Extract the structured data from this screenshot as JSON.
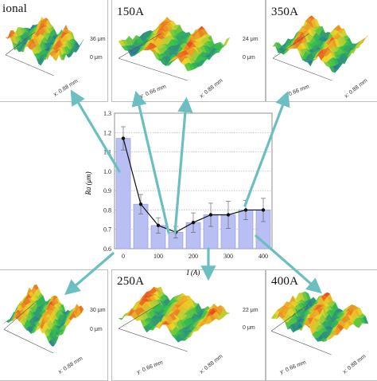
{
  "panels": [
    {
      "id": "p0",
      "label": "ional",
      "z_top": "36 μm",
      "z_zero": "0 μm",
      "x_axis": "x: 0.88 mm",
      "y_axis": ""
    },
    {
      "id": "p150",
      "label": "150A",
      "z_top": "24 μm",
      "z_zero": "0 μm",
      "x_axis": "x: 0.88 mm",
      "y_axis": "y: 0.66 mm"
    },
    {
      "id": "p350",
      "label": "350A",
      "z_top": "",
      "z_zero": "",
      "x_axis": "x: 0.88 mm",
      "y_axis": "y: 0.66 mm"
    },
    {
      "id": "p50",
      "label": "",
      "z_top": "30 μm",
      "z_zero": "0 μm",
      "x_axis": "x: 0.88 mm",
      "y_axis": ""
    },
    {
      "id": "p250",
      "label": "250A",
      "z_top": "22 μm",
      "z_zero": "0 μm",
      "x_axis": "x: 0.88 mm",
      "y_axis": "y: 0.66 mm"
    },
    {
      "id": "p400",
      "label": "400A",
      "z_top": "",
      "z_zero": "",
      "x_axis": "x: 0.88 mm",
      "y_axis": "y: 0.66 mm"
    }
  ],
  "colors": {
    "bar_fill": "#b9bff2",
    "bar_stroke": "#8f97d8",
    "line": "#111111",
    "arrow": "#6bbfc0",
    "surface_low": "#1f3fd6",
    "surface_mid": "#35c04a",
    "surface_high": "#e8231a"
  },
  "chart_data": {
    "type": "bar",
    "x": [
      0,
      50,
      100,
      150,
      200,
      250,
      300,
      350,
      400
    ],
    "values": [
      1.17,
      0.83,
      0.72,
      0.685,
      0.735,
      0.775,
      0.775,
      0.8,
      0.8
    ],
    "errors": [
      0.06,
      0.05,
      0.04,
      0.03,
      0.05,
      0.06,
      0.07,
      0.05,
      0.06
    ],
    "line_overlay": true,
    "xlabel": "I (A)",
    "ylabel": "Ra (μm)",
    "xticks": [
      0,
      100,
      200,
      300,
      400
    ],
    "yticks": [
      0.6,
      0.7,
      0.8,
      0.9,
      1.0,
      1.1,
      1.2,
      1.3
    ],
    "xlim": [
      -25,
      425
    ],
    "ylim": [
      0.6,
      1.3
    ],
    "grid": "horizontal dotted"
  }
}
